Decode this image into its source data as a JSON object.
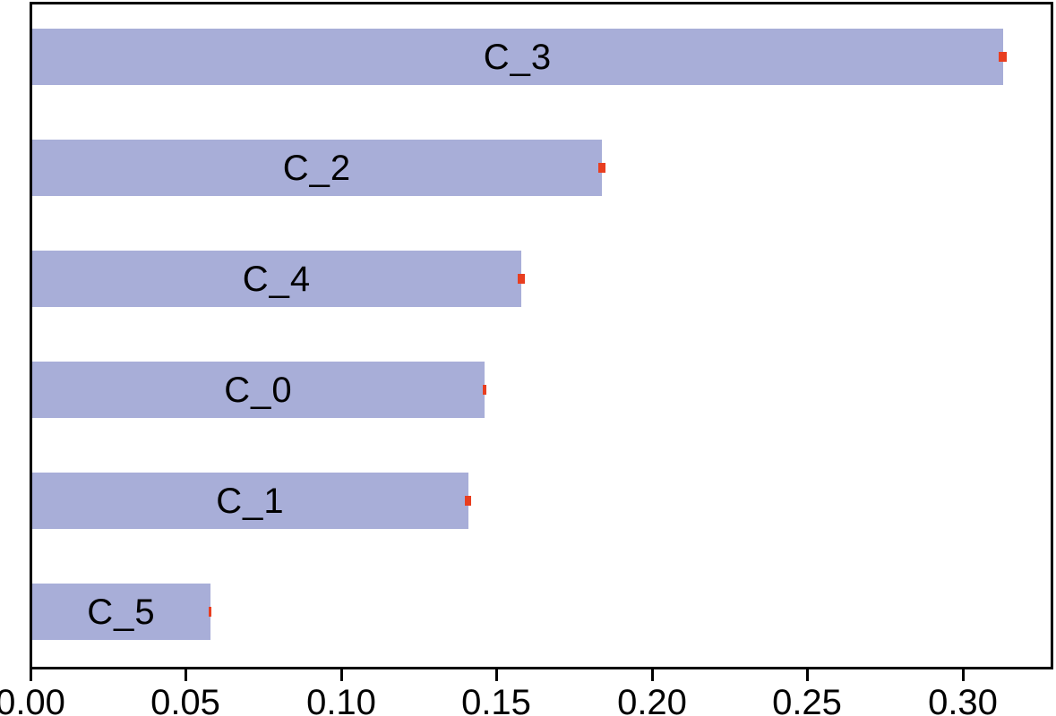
{
  "chart_data": {
    "type": "bar",
    "orientation": "horizontal",
    "title": "",
    "xlabel": "",
    "ylabel": "",
    "categories": [
      "C_3",
      "C_2",
      "C_4",
      "C_0",
      "C_1",
      "C_5"
    ],
    "values": [
      0.313,
      0.184,
      0.158,
      0.146,
      0.141,
      0.058
    ],
    "errors": [
      0.0013,
      0.0011,
      0.0011,
      0.0006,
      0.001,
      0.0004
    ],
    "label_position": "centered-inside-bar",
    "xticks": [
      {
        "value": 0.0,
        "label": "0.00"
      },
      {
        "value": 0.05,
        "label": "0.05"
      },
      {
        "value": 0.1,
        "label": "0.10"
      },
      {
        "value": 0.15,
        "label": "0.15"
      },
      {
        "value": 0.2,
        "label": "0.20"
      },
      {
        "value": 0.25,
        "label": "0.25"
      },
      {
        "value": 0.3,
        "label": "0.30"
      }
    ],
    "xlim": [
      0,
      0.3277
    ],
    "grid": false,
    "legend": "none",
    "frame": "full-box",
    "colors": {
      "bar": "#a8aed8",
      "error": "#e83e20",
      "axis": "#000000",
      "text": "#000000",
      "background": "#ffffff"
    }
  }
}
